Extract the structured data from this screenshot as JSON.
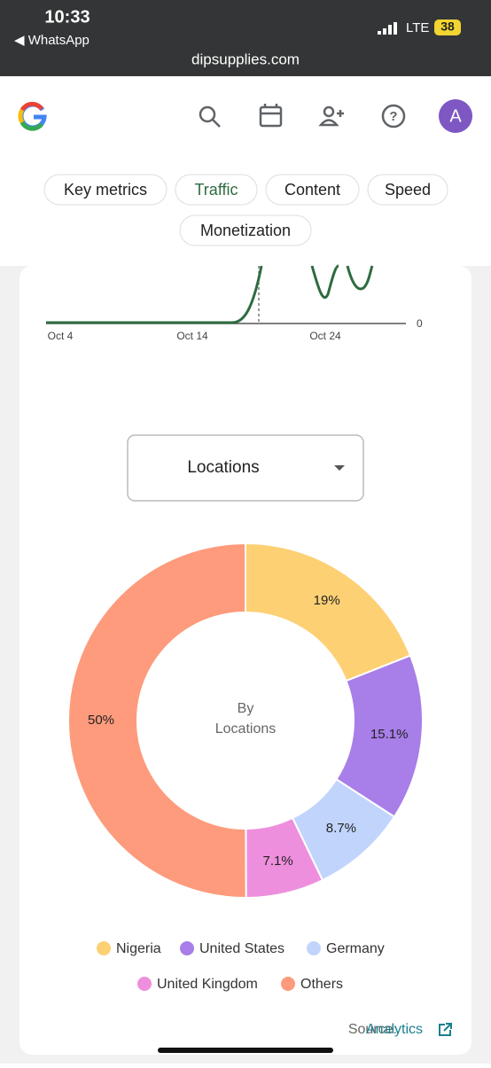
{
  "status_bar": {
    "time": "10:33",
    "back_app": "◀ WhatsApp",
    "network": "LTE",
    "battery": "38"
  },
  "url": "dipsupplies.com",
  "header": {
    "avatar": "A"
  },
  "tabs": [
    "Key metrics",
    "Traffic",
    "Content",
    "Speed",
    "Monetization"
  ],
  "line_chart": {
    "x_labels": [
      "Oct 4",
      "Oct 14",
      "Oct 24"
    ],
    "y_label": "0"
  },
  "dropdown": "Locations",
  "chart_data": {
    "type": "pie",
    "center_text": [
      "By",
      "Locations"
    ],
    "categories": [
      "Nigeria",
      "United States",
      "Germany",
      "United Kingdom",
      "Others"
    ],
    "values": [
      19,
      15.1,
      8.7,
      7.1,
      50
    ],
    "value_labels": [
      "19%",
      "15.1%",
      "8.7%",
      "7.1%",
      "50%"
    ],
    "colors": [
      "#fdd074",
      "#a87ee8",
      "#c1d5fc",
      "#ee8fde",
      "#fd9b7c"
    ]
  },
  "source": {
    "label": "Source:",
    "link": "Analytics"
  }
}
